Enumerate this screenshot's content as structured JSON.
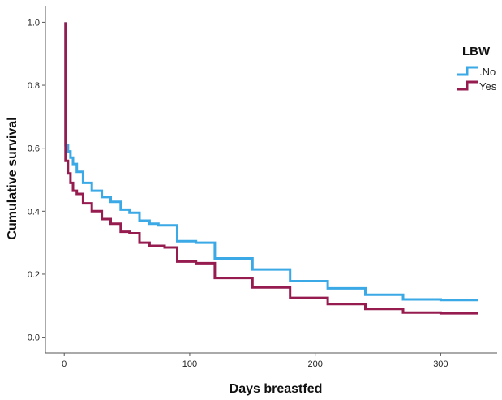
{
  "chart_data": {
    "type": "line",
    "subtype": "step-survival",
    "title": "",
    "xlabel": "Days breastfed",
    "ylabel": "Cumulative survival",
    "xlim": [
      -15,
      345
    ],
    "ylim": [
      -0.05,
      1.05
    ],
    "x_ticks": [
      0,
      100,
      200,
      300
    ],
    "x_tick_labels": [
      "0",
      "100",
      "200",
      "300"
    ],
    "y_ticks": [
      0.0,
      0.2,
      0.4,
      0.6,
      0.8,
      1.0
    ],
    "y_tick_labels": [
      "0.0",
      "0.2",
      "0.4",
      "0.6",
      "0.8",
      "1.0"
    ],
    "grid": false,
    "legend": {
      "title": "LBW",
      "position": "top-right"
    },
    "series": [
      {
        "name": ".No",
        "color": "#3aa9e6",
        "points": [
          [
            1,
            1.0
          ],
          [
            1,
            0.61
          ],
          [
            3,
            0.61
          ],
          [
            3,
            0.59
          ],
          [
            5,
            0.59
          ],
          [
            5,
            0.57
          ],
          [
            7,
            0.57
          ],
          [
            7,
            0.55
          ],
          [
            10,
            0.55
          ],
          [
            10,
            0.525
          ],
          [
            15,
            0.525
          ],
          [
            15,
            0.49
          ],
          [
            22,
            0.49
          ],
          [
            22,
            0.465
          ],
          [
            30,
            0.465
          ],
          [
            30,
            0.445
          ],
          [
            37,
            0.445
          ],
          [
            37,
            0.43
          ],
          [
            45,
            0.43
          ],
          [
            45,
            0.405
          ],
          [
            52,
            0.405
          ],
          [
            52,
            0.395
          ],
          [
            60,
            0.395
          ],
          [
            60,
            0.37
          ],
          [
            68,
            0.37
          ],
          [
            68,
            0.36
          ],
          [
            75,
            0.36
          ],
          [
            75,
            0.355
          ],
          [
            90,
            0.355
          ],
          [
            90,
            0.305
          ],
          [
            105,
            0.305
          ],
          [
            105,
            0.3
          ],
          [
            120,
            0.3
          ],
          [
            120,
            0.25
          ],
          [
            150,
            0.25
          ],
          [
            150,
            0.215
          ],
          [
            180,
            0.215
          ],
          [
            180,
            0.178
          ],
          [
            210,
            0.178
          ],
          [
            210,
            0.155
          ],
          [
            240,
            0.155
          ],
          [
            240,
            0.135
          ],
          [
            270,
            0.135
          ],
          [
            270,
            0.12
          ],
          [
            300,
            0.12
          ],
          [
            300,
            0.118
          ],
          [
            330,
            0.118
          ]
        ]
      },
      {
        "name": "Yes",
        "color": "#961c50",
        "points": [
          [
            1,
            1.0
          ],
          [
            1,
            0.56
          ],
          [
            3,
            0.56
          ],
          [
            3,
            0.52
          ],
          [
            5,
            0.52
          ],
          [
            5,
            0.49
          ],
          [
            7,
            0.49
          ],
          [
            7,
            0.465
          ],
          [
            10,
            0.465
          ],
          [
            10,
            0.455
          ],
          [
            15,
            0.455
          ],
          [
            15,
            0.425
          ],
          [
            22,
            0.425
          ],
          [
            22,
            0.4
          ],
          [
            30,
            0.4
          ],
          [
            30,
            0.375
          ],
          [
            37,
            0.375
          ],
          [
            37,
            0.36
          ],
          [
            45,
            0.36
          ],
          [
            45,
            0.335
          ],
          [
            52,
            0.335
          ],
          [
            52,
            0.33
          ],
          [
            60,
            0.33
          ],
          [
            60,
            0.3
          ],
          [
            68,
            0.3
          ],
          [
            68,
            0.29
          ],
          [
            80,
            0.29
          ],
          [
            80,
            0.285
          ],
          [
            90,
            0.285
          ],
          [
            90,
            0.24
          ],
          [
            105,
            0.24
          ],
          [
            105,
            0.235
          ],
          [
            120,
            0.235
          ],
          [
            120,
            0.188
          ],
          [
            150,
            0.188
          ],
          [
            150,
            0.158
          ],
          [
            180,
            0.158
          ],
          [
            180,
            0.125
          ],
          [
            210,
            0.125
          ],
          [
            210,
            0.105
          ],
          [
            240,
            0.105
          ],
          [
            240,
            0.09
          ],
          [
            270,
            0.09
          ],
          [
            270,
            0.078
          ],
          [
            300,
            0.078
          ],
          [
            300,
            0.076
          ],
          [
            330,
            0.076
          ]
        ]
      }
    ]
  }
}
